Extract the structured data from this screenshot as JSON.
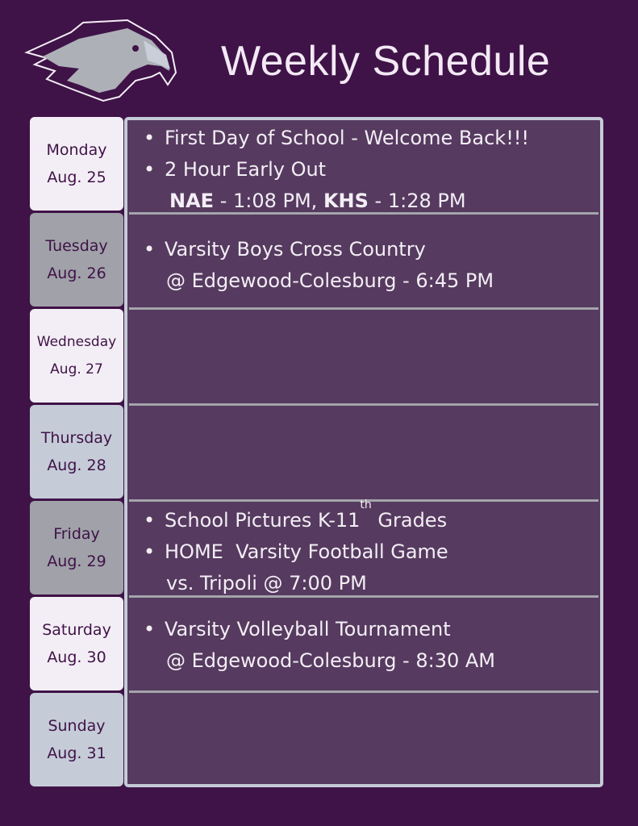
{
  "title": "Weekly Schedule",
  "days": [
    {
      "name": "Monday",
      "date": "Aug. 25",
      "color": "#f3eef5"
    },
    {
      "name": "Tuesday",
      "date": "Aug. 26",
      "color": "#a0a1a9"
    },
    {
      "name": "Wednesday",
      "date": "Aug. 27",
      "color": "#f3eef5"
    },
    {
      "name": "Thursday",
      "date": "Aug. 28",
      "color": "#c5ccd8"
    },
    {
      "name": "Friday",
      "date": "Aug. 29",
      "color": "#a0a1a9"
    },
    {
      "name": "Saturday",
      "date": "Aug. 30",
      "color": "#f3eef5"
    },
    {
      "name": "Sunday",
      "date": "Aug. 31",
      "color": "#c5ccd8"
    }
  ],
  "events": {
    "mon": {
      "b1": "First Day of School - Welcome Back!!!",
      "b2": "2 Hour Early Out",
      "nae": "NAE",
      "nae_time": " - 1:08 PM, ",
      "khs": "KHS",
      "khs_time": " - 1:28 PM"
    },
    "tue": {
      "b1": "Varsity Boys Cross Country",
      "l2": "@ Edgewood-Colesburg - 6:45 PM"
    },
    "fri": {
      "b1a": "School Pictures K-11",
      "b1sup": "th",
      "b1b": " Grades",
      "b2": "HOME  Varsity Football Game",
      "l3": "vs. Tripoli @ 7:00 PM"
    },
    "sat": {
      "b1": "Varsity Volleyball Tournament",
      "l2": "@ Edgewood-Colesburg - 8:30 AM"
    }
  },
  "colors": {
    "background": "#3f1347",
    "panel": "#563a5f",
    "border": "#c5cbd8"
  }
}
